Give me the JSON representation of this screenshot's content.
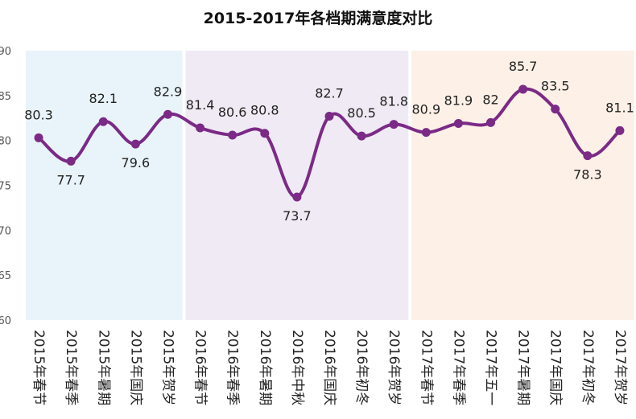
{
  "chart_data": {
    "type": "line",
    "title": "2015-2017年各档期满意度对比",
    "ylim": [
      60,
      90
    ],
    "yticks": [
      "60",
      "65",
      "70",
      "75",
      "80",
      "85",
      "90"
    ],
    "grid": false,
    "categories": [
      "2015年春节",
      "2015年春季",
      "2015年暑期",
      "2015年国庆",
      "2015年贺岁",
      "2016年春节",
      "2016年春季",
      "2016年暑期",
      "2016年中秋",
      "2016年国庆",
      "2016年初冬",
      "2016年贺岁",
      "2017年春节",
      "2017年春季",
      "2017年五一",
      "2017年暑期",
      "2017年国庆",
      "2017年初冬",
      "2017年贺岁"
    ],
    "values": [
      80.3,
      77.7,
      82.1,
      79.6,
      82.9,
      81.4,
      80.6,
      80.8,
      73.7,
      82.7,
      80.5,
      81.8,
      80.9,
      81.9,
      82,
      85.7,
      83.5,
      78.3,
      81.1
    ],
    "data_labels": [
      "80.3",
      "77.7",
      "82.1",
      "79.6",
      "82.9",
      "81.4",
      "80.6",
      "80.8",
      "73.7",
      "82.7",
      "80.5",
      "81.8",
      "80.9",
      "81.9",
      "82",
      "85.7",
      "83.5",
      "78.3",
      "81.1"
    ],
    "label_position": [
      "above",
      "below",
      "above",
      "below",
      "above",
      "above",
      "above",
      "above",
      "below",
      "above",
      "above",
      "above",
      "above",
      "above",
      "above",
      "above",
      "above",
      "below",
      "above"
    ],
    "band_groups": [
      {
        "from": 0,
        "to": 4,
        "color": "#e9f4fa"
      },
      {
        "from": 5,
        "to": 11,
        "color": "#efeaf3"
      },
      {
        "from": 12,
        "to": 18,
        "color": "#fdf1e7"
      }
    ],
    "line_color": "#7b2a86"
  }
}
